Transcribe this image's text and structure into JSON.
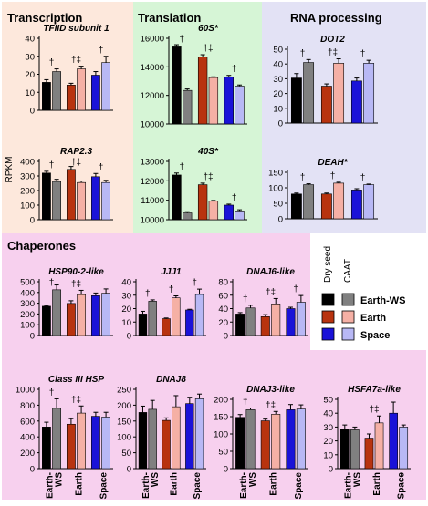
{
  "sections": {
    "transcription": "Transcription",
    "translation": "Translation",
    "rna_processing": "RNA processing",
    "chaperones": "Chaperones"
  },
  "colors": {
    "transcription_bg": "#fde8dc",
    "translation_bg": "#d6f5d6",
    "rna_bg": "#e3e2f5",
    "chaperones_bg": "#f7d0ee",
    "earth_ws_dry": "#000000",
    "earth_ws_caat": "#808080",
    "earth_dry": "#b8330f",
    "earth_caat": "#f5b0a5",
    "space_dry": "#1a12d8",
    "space_caat": "#b8b8f5"
  },
  "y_axis_label": "RPKM",
  "legend": {
    "col_dry": "Dry seed",
    "col_caat": "CAAT",
    "rows": [
      "Earth-WS",
      "Earth",
      "Space"
    ]
  },
  "x_tick_labels": [
    "Earth-\nWS",
    "Earth",
    "Space"
  ],
  "chart_data": [
    {
      "type": "bar",
      "id": "tfiid",
      "title": "TFIID subunit 1",
      "ylim": [
        0,
        40
      ],
      "yticks": [
        0,
        10,
        20,
        30,
        40
      ],
      "values": [
        15.5,
        21.5,
        14,
        23,
        19.5,
        26.5
      ],
      "errors": [
        1.5,
        1.5,
        1,
        1.5,
        2,
        3.5
      ],
      "annotations": [
        "†",
        "†‡",
        "†"
      ]
    },
    {
      "type": "bar",
      "id": "rap23",
      "title": "RAP2.3",
      "ylim": [
        0,
        400
      ],
      "yticks": [
        0,
        100,
        200,
        300,
        400
      ],
      "values": [
        320,
        262,
        345,
        255,
        295,
        255
      ],
      "errors": [
        12,
        15,
        20,
        10,
        22,
        15
      ],
      "annotations": [
        "†",
        "†‡",
        "†"
      ]
    },
    {
      "type": "bar",
      "id": "60s",
      "title": "60S*",
      "ylim": [
        10000,
        16000
      ],
      "yticks": [
        10000,
        12000,
        14000,
        16000
      ],
      "values": [
        15400,
        12350,
        14700,
        13250,
        13300,
        12650
      ],
      "errors": [
        150,
        100,
        150,
        50,
        100,
        80
      ],
      "annotations": [
        "†",
        "†‡",
        "†"
      ]
    },
    {
      "type": "bar",
      "id": "40s",
      "title": "40S*",
      "ylim": [
        10000,
        13000
      ],
      "yticks": [
        10000,
        11000,
        12000,
        13000
      ],
      "values": [
        12300,
        10350,
        11800,
        10950,
        10750,
        10450
      ],
      "errors": [
        100,
        60,
        80,
        40,
        50,
        60
      ],
      "annotations": [
        "†",
        "†‡",
        "†"
      ]
    },
    {
      "type": "bar",
      "id": "dot2",
      "title": "DOT2",
      "ylim": [
        0,
        50
      ],
      "yticks": [
        0,
        10,
        20,
        30,
        40,
        50
      ],
      "values": [
        30.5,
        41,
        25,
        40.5,
        28.5,
        40.5
      ],
      "errors": [
        3,
        2,
        1.5,
        3,
        2,
        2
      ],
      "annotations": [
        "†",
        "†‡",
        "†"
      ]
    },
    {
      "type": "bar",
      "id": "deah",
      "title": "DEAH*",
      "ylim": [
        0,
        150
      ],
      "yticks": [
        0,
        50,
        100,
        150
      ],
      "values": [
        80,
        110,
        80,
        115,
        93,
        110
      ],
      "errors": [
        3,
        3,
        3,
        3,
        4,
        2
      ],
      "annotations": [
        "†",
        "†",
        "†"
      ]
    },
    {
      "type": "bar",
      "id": "hsp902",
      "title": "HSP90-2-like",
      "ylim": [
        0,
        500
      ],
      "yticks": [
        0,
        100,
        200,
        300,
        400,
        500
      ],
      "values": [
        272,
        425,
        298,
        380,
        370,
        393
      ],
      "errors": [
        8,
        45,
        25,
        40,
        25,
        40
      ],
      "annotations": [
        "†",
        "†‡",
        ""
      ]
    },
    {
      "type": "bar",
      "id": "jjj1",
      "title": "JJJ1",
      "ylim": [
        0,
        40
      ],
      "yticks": [
        0,
        10,
        20,
        30,
        40
      ],
      "values": [
        16,
        25.5,
        12.5,
        28,
        19,
        30.5
      ],
      "errors": [
        2,
        1,
        0.5,
        1.5,
        0.5,
        4
      ],
      "annotations": [
        "†",
        "†",
        "†"
      ]
    },
    {
      "type": "bar",
      "id": "dnaj6",
      "title": "DNAJ6-like",
      "ylim": [
        0,
        80
      ],
      "yticks": [
        0,
        20,
        40,
        60,
        80
      ],
      "values": [
        32,
        41,
        28,
        47,
        40,
        49.5
      ],
      "errors": [
        2,
        4,
        3,
        8,
        2,
        10
      ],
      "annotations": [
        "†",
        "†‡",
        "†"
      ]
    },
    {
      "type": "bar",
      "id": "class3hsp",
      "title": "Class III HSP",
      "ylim": [
        0,
        1000
      ],
      "yticks": [
        0,
        200,
        400,
        600,
        800,
        1000
      ],
      "values": [
        525,
        760,
        560,
        700,
        660,
        650
      ],
      "errors": [
        60,
        120,
        70,
        90,
        50,
        60
      ],
      "annotations": [
        "†",
        "†‡",
        ""
      ]
    },
    {
      "type": "bar",
      "id": "dnaj8",
      "title": "DNAJ8",
      "ylim": [
        0,
        250
      ],
      "yticks": [
        0,
        50,
        100,
        150,
        200,
        250
      ],
      "values": [
        177,
        187,
        152,
        195,
        205,
        220
      ],
      "errors": [
        20,
        28,
        8,
        35,
        20,
        15
      ],
      "annotations": [
        "",
        "",
        ""
      ]
    },
    {
      "type": "bar",
      "id": "dnaj3",
      "title": "DNAJ3-like",
      "ylim": [
        0,
        200
      ],
      "yticks": [
        0,
        50,
        100,
        150,
        200
      ],
      "values": [
        148,
        170,
        138,
        157,
        170,
        172
      ],
      "errors": [
        8,
        5,
        5,
        8,
        15,
        12
      ],
      "annotations": [
        "†",
        "†‡",
        ""
      ]
    },
    {
      "type": "bar",
      "id": "hsfa7a",
      "title": "HSFA7a-like",
      "ylim": [
        0,
        50
      ],
      "yticks": [
        0,
        10,
        20,
        30,
        40,
        50
      ],
      "values": [
        28.5,
        28,
        22,
        33,
        40,
        30
      ],
      "errors": [
        3,
        2,
        3,
        5,
        8,
        1.5
      ],
      "annotations": [
        "",
        "†‡",
        ""
      ]
    }
  ]
}
